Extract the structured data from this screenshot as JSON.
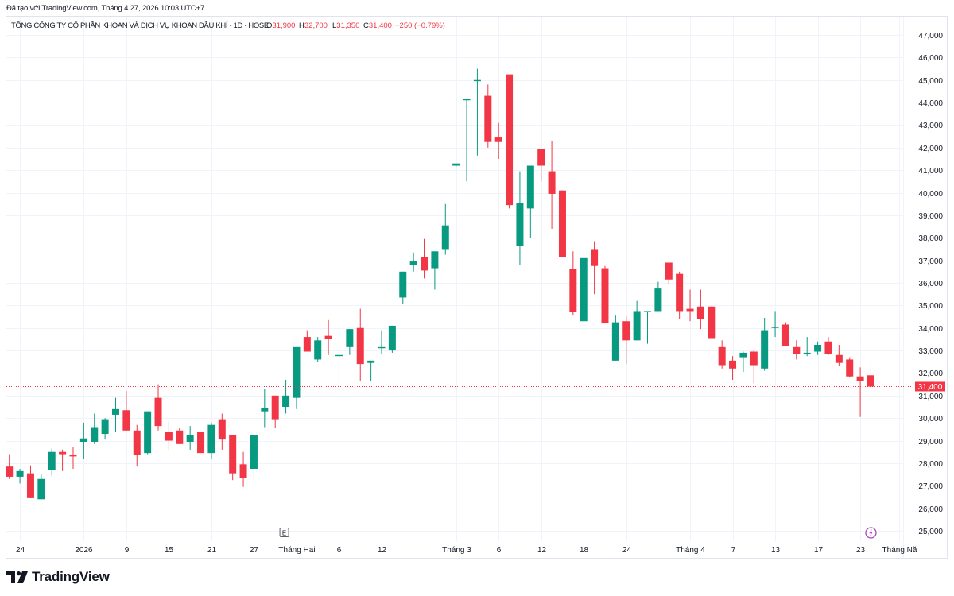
{
  "created_note": "Đã tạo với TradingView.com, Tháng 4 27, 2026 10:03 UTC+7",
  "legend": {
    "symbol_title": "TỔNG CÔNG TY CỔ PHẦN KHOAN VÀ DỊCH VỤ KHOAN DẦU KHÍ · 1D · HOSE",
    "open_label": "O",
    "open": "31,900",
    "high_label": "H",
    "high": "32,700",
    "low_label": "L",
    "low": "31,350",
    "close_label": "C",
    "close": "31,400",
    "change": "−250 (−0.79%)"
  },
  "price_axis": {
    "labels": [
      "47,000",
      "46,000",
      "45,000",
      "44,000",
      "43,000",
      "42,000",
      "41,000",
      "40,000",
      "39,000",
      "38,000",
      "37,000",
      "36,000",
      "35,000",
      "34,000",
      "33,000",
      "32,000",
      "31,000",
      "30,000",
      "29,000",
      "28,000",
      "27,000",
      "26,000",
      "25,000"
    ],
    "last_price_label": "31,400"
  },
  "time_axis": {
    "labels": [
      {
        "text": "24",
        "index": 1
      },
      {
        "text": "2026",
        "index": 7
      },
      {
        "text": "9",
        "index": 11
      },
      {
        "text": "15",
        "index": 15
      },
      {
        "text": "21",
        "index": 19
      },
      {
        "text": "27",
        "index": 23
      },
      {
        "text": "Tháng Hai",
        "index": 27
      },
      {
        "text": "6",
        "index": 31
      },
      {
        "text": "12",
        "index": 35
      },
      {
        "text": "Tháng 3",
        "index": 42
      },
      {
        "text": "6",
        "index": 46
      },
      {
        "text": "12",
        "index": 50
      },
      {
        "text": "18",
        "index": 54
      },
      {
        "text": "24",
        "index": 58
      },
      {
        "text": "Tháng 4",
        "index": 64
      },
      {
        "text": "7",
        "index": 68
      },
      {
        "text": "13",
        "index": 72
      },
      {
        "text": "17",
        "index": 76
      },
      {
        "text": "23",
        "index": 80
      },
      {
        "text": "Tháng Nă",
        "index": 83.65
      }
    ]
  },
  "markers": {
    "earnings": {
      "label": "E",
      "index": 26,
      "icon": "earnings-icon"
    },
    "dividend": {
      "index": 81,
      "icon": "lightning-icon"
    }
  },
  "branding": {
    "logo_text": "TradingView"
  },
  "colors": {
    "up": "#089981",
    "down": "#f23645",
    "grid": "#f0f3fa",
    "border": "#e0e3eb",
    "text": "#131722",
    "marker_purple": "#ab47bc"
  },
  "chart_data": {
    "type": "candlestick",
    "title": "TỔNG CÔNG TY CỔ PHẦN KHOAN VÀ DỊCH VỤ KHOAN DẦU KHÍ · 1D · HOSE",
    "xlabel": "",
    "ylabel": "",
    "ylim": [
      25000,
      47000
    ],
    "grid": true,
    "legend_position": "top-left",
    "last_price": 31400,
    "x_tick_labels": [
      "24",
      "2026",
      "9",
      "15",
      "21",
      "27",
      "Tháng Hai",
      "6",
      "12",
      "Tháng 3",
      "6",
      "12",
      "18",
      "24",
      "Tháng 4",
      "7",
      "13",
      "17",
      "23",
      "Tháng Nă"
    ],
    "open": [
      27850,
      27400,
      27550,
      26400,
      27700,
      28500,
      28350,
      28950,
      28950,
      29300,
      30150,
      30350,
      29450,
      28450,
      30900,
      29400,
      29450,
      28950,
      29400,
      28450,
      29950,
      29250,
      27950,
      27750,
      30300,
      31000,
      30500,
      30900,
      33600,
      32600,
      33650,
      32750,
      33150,
      34000,
      32450,
      33100,
      33000,
      35350,
      36800,
      37150,
      36650,
      37500,
      41200,
      44100,
      44950,
      44300,
      42450,
      45250,
      37650,
      39300,
      41950,
      40950,
      40100,
      36600,
      34300,
      37500,
      36650,
      32550,
      34300,
      33450,
      34700,
      34750,
      36900,
      36400,
      34850,
      34950,
      34950,
      33150,
      32550,
      32700,
      32950,
      32200,
      34000,
      34150,
      33150,
      32850,
      32950,
      33400,
      32800,
      32600,
      31850,
      31900
    ],
    "high": [
      28400,
      27750,
      27900,
      27500,
      28650,
      28600,
      28700,
      29800,
      30200,
      30000,
      30900,
      31200,
      29700,
      30300,
      31500,
      29850,
      29550,
      29650,
      29400,
      29800,
      30200,
      29250,
      28500,
      29250,
      31300,
      31000,
      31700,
      33150,
      33900,
      33600,
      34350,
      34050,
      33950,
      34850,
      32550,
      33900,
      34100,
      36500,
      37350,
      37950,
      37400,
      39500,
      41300,
      44150,
      45500,
      44800,
      43100,
      45250,
      40950,
      41200,
      41950,
      42300,
      40100,
      37400,
      37100,
      37850,
      36750,
      34550,
      34500,
      35200,
      34750,
      36050,
      36900,
      36500,
      35700,
      35700,
      34950,
      33450,
      32750,
      32950,
      33050,
      34450,
      34750,
      34250,
      33450,
      33600,
      33400,
      33600,
      33250,
      32700,
      32250,
      32700
    ],
    "low": [
      27300,
      27100,
      26450,
      26400,
      27450,
      27650,
      27750,
      28200,
      28850,
      29050,
      29400,
      29450,
      27850,
      28400,
      29450,
      28600,
      28850,
      28600,
      28450,
      28200,
      28600,
      27250,
      26950,
      27350,
      29600,
      29550,
      30200,
      30400,
      32950,
      32500,
      32800,
      31250,
      32800,
      31650,
      31650,
      32850,
      32900,
      35050,
      36500,
      36200,
      35700,
      37250,
      41150,
      40500,
      41650,
      42000,
      41500,
      39300,
      36800,
      38000,
      40500,
      38400,
      37150,
      34550,
      34300,
      35500,
      34200,
      32550,
      32400,
      33450,
      33300,
      34750,
      35950,
      34400,
      34300,
      33950,
      33550,
      32200,
      31700,
      32050,
      31550,
      32100,
      33600,
      33200,
      32600,
      32750,
      32800,
      32800,
      32300,
      31800,
      30050,
      31350
    ],
    "close": [
      27400,
      27650,
      26450,
      27300,
      28500,
      28400,
      28300,
      29100,
      29600,
      29950,
      30400,
      29450,
      28350,
      30300,
      29650,
      29000,
      28850,
      29250,
      28450,
      29700,
      29050,
      27550,
      27350,
      29250,
      30450,
      29950,
      31000,
      33150,
      32950,
      33450,
      33500,
      32800,
      33950,
      32400,
      32550,
      33150,
      34100,
      36500,
      36950,
      36550,
      37400,
      38550,
      41300,
      44150,
      45000,
      42250,
      42250,
      39450,
      39550,
      41200,
      41200,
      39950,
      37150,
      34700,
      37100,
      36750,
      34200,
      34250,
      33450,
      34750,
      34750,
      35750,
      36150,
      34750,
      34750,
      34400,
      33550,
      32350,
      32200,
      32900,
      32350,
      33900,
      34050,
      33200,
      32850,
      32900,
      33250,
      32850,
      32450,
      31850,
      31650,
      31400
    ]
  }
}
